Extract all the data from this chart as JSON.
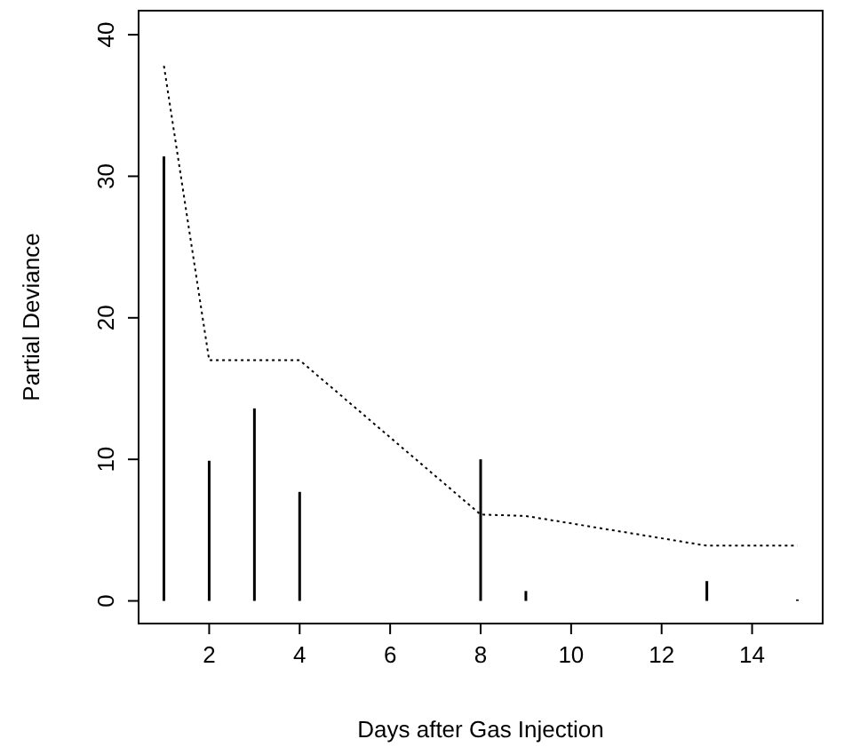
{
  "chart_data": {
    "type": "bar",
    "xlabel": "Days after Gas Injection",
    "ylabel": "Partial Deviance",
    "xlim": [
      0.44,
      15.56
    ],
    "ylim": [
      -1.6,
      41.7
    ],
    "xticks": [
      2,
      4,
      6,
      8,
      10,
      12,
      14
    ],
    "yticks": [
      0,
      10,
      20,
      30,
      40
    ],
    "grid": false,
    "series": [
      {
        "color": "#000000",
        "x": [
          1,
          2,
          3,
          4,
          8,
          9,
          13,
          15
        ],
        "values": [
          31.4,
          9.9,
          13.6,
          7.7,
          10.0,
          0.7,
          1.4,
          0.1
        ]
      },
      {
        "type": "line",
        "color": "#000000",
        "line_style": "dotted",
        "x": [
          1,
          2,
          4,
          8,
          9,
          13,
          15
        ],
        "values": [
          37.8,
          17.0,
          17.0,
          6.1,
          6.0,
          3.9,
          3.9
        ]
      }
    ]
  }
}
